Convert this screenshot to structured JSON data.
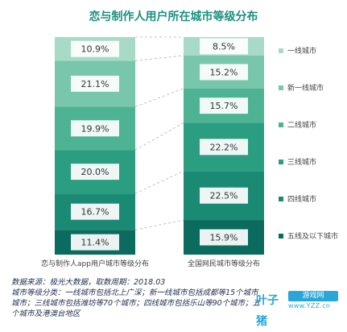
{
  "chart_data": {
    "type": "bar",
    "stacked": true,
    "percent_stacked": true,
    "title": "恋与制作人用户所在城市等级分布",
    "categories": [
      "恋与制作人app用户城市等级分布",
      "全国网民城市等级分布"
    ],
    "series": [
      {
        "name": "五线及以下城市",
        "color": "#0a6b5e",
        "values": [
          11.4,
          15.9
        ]
      },
      {
        "name": "四线城市",
        "color": "#1b8a74",
        "values": [
          16.7,
          22.5
        ]
      },
      {
        "name": "三线城市",
        "color": "#2b9d80",
        "values": [
          20.0,
          22.2
        ]
      },
      {
        "name": "二线城市",
        "color": "#4db393",
        "values": [
          19.9,
          15.7
        ]
      },
      {
        "name": "新一线城市",
        "color": "#78c6ab",
        "values": [
          21.1,
          15.2
        ]
      },
      {
        "name": "一线城市",
        "color": "#a8dac8",
        "values": [
          10.9,
          8.5
        ]
      }
    ],
    "labels": [
      [
        "11.4%",
        "16.7%",
        "20.0%",
        "19.9%",
        "21.1%",
        "10.9%"
      ],
      [
        "15.9%",
        "22.5%",
        "22.2%",
        "15.7%",
        "15.2%",
        "8.5%"
      ]
    ],
    "legend_position": "right"
  },
  "notes": [
    "数据来源：极光大数据，取数周期：2018.03",
    "城市等级分类：一线城市包括北上广深；新一线城市包括成都等15个城市",
    "城市；三线城市包括潍坊等70个城市；四线城市包括乐山等90个城市；五",
    "个城市及港澳台地区"
  ],
  "logo": {
    "name": "叶子猪",
    "badge": "游戏网",
    "url": "www.YZZ.cn",
    "color": "#2aa7d8"
  }
}
